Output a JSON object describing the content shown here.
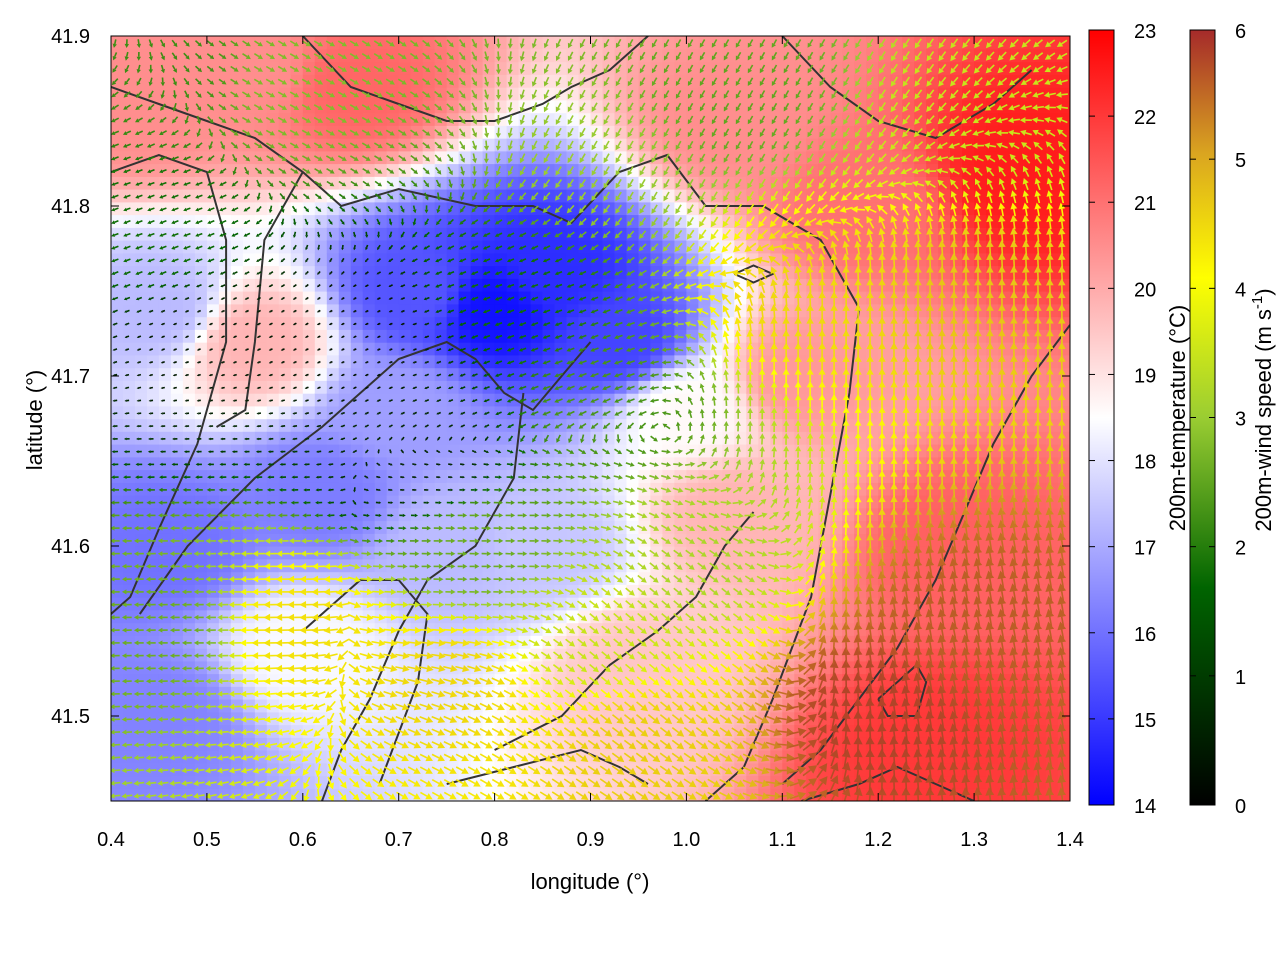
{
  "chart_data": {
    "type": "heatmap",
    "title": "",
    "xlabel": "longitude (°)",
    "ylabel": "latitude (°)",
    "xlim": [
      0.4,
      1.4
    ],
    "ylim": [
      41.45,
      41.9
    ],
    "xticks": [
      "0.4",
      "0.5",
      "0.6",
      "0.7",
      "0.8",
      "0.9",
      "1.0",
      "1.1",
      "1.2",
      "1.3",
      "1.4"
    ],
    "yticks": [
      "41.5",
      "41.6",
      "41.7",
      "41.8",
      "41.9"
    ],
    "temperature_colorbar": {
      "label": "200m-temperature (°C)",
      "range": [
        14,
        23
      ],
      "ticks": [
        "14",
        "15",
        "16",
        "17",
        "18",
        "19",
        "20",
        "21",
        "22",
        "23"
      ],
      "colors": [
        "#0000ff",
        "#ffffff",
        "#ff0000"
      ]
    },
    "wind_colorbar": {
      "label_main": "200m-wind speed (m s",
      "label_sup": "-1",
      "label_end": ")",
      "range": [
        0,
        6
      ],
      "ticks": [
        "0",
        "1",
        "2",
        "3",
        "4",
        "5",
        "6"
      ],
      "colors": [
        "#000000",
        "#006400",
        "#9acd32",
        "#ffff00",
        "#daa520",
        "#a52a2a"
      ]
    },
    "temperature_field_anchors": [
      {
        "lon": 0.8,
        "lat": 41.74,
        "t": 14.3
      },
      {
        "lon": 0.86,
        "lat": 41.76,
        "t": 14.8
      },
      {
        "lon": 0.72,
        "lat": 41.75,
        "t": 15.5
      },
      {
        "lon": 0.93,
        "lat": 41.72,
        "t": 15.2
      },
      {
        "lon": 0.46,
        "lat": 41.6,
        "t": 16.0
      },
      {
        "lon": 0.62,
        "lat": 41.63,
        "t": 16.2
      },
      {
        "lon": 0.45,
        "lat": 41.5,
        "t": 16.3
      },
      {
        "lon": 0.45,
        "lat": 41.74,
        "t": 17.3
      },
      {
        "lon": 0.75,
        "lat": 41.6,
        "t": 17.3
      },
      {
        "lon": 0.85,
        "lat": 41.6,
        "t": 17.5
      },
      {
        "lon": 0.7,
        "lat": 41.68,
        "t": 16.8
      },
      {
        "lon": 0.55,
        "lat": 41.72,
        "t": 19.8
      },
      {
        "lon": 0.43,
        "lat": 41.86,
        "t": 20.5
      },
      {
        "lon": 0.65,
        "lat": 41.87,
        "t": 21.2
      },
      {
        "lon": 0.55,
        "lat": 41.88,
        "t": 20.5
      },
      {
        "lon": 1.18,
        "lat": 41.8,
        "t": 21.0
      },
      {
        "lon": 1.35,
        "lat": 41.82,
        "t": 22.5
      },
      {
        "lon": 1.28,
        "lat": 41.6,
        "t": 21.3
      },
      {
        "lon": 1.25,
        "lat": 41.48,
        "t": 22.0
      },
      {
        "lon": 1.05,
        "lat": 41.62,
        "t": 19.8
      },
      {
        "lon": 0.95,
        "lat": 41.53,
        "t": 19.5
      },
      {
        "lon": 0.6,
        "lat": 41.54,
        "t": 18.4
      },
      {
        "lon": 1.05,
        "lat": 41.85,
        "t": 20.5
      },
      {
        "lon": 1.0,
        "lat": 41.68,
        "t": 18.6
      },
      {
        "lon": 1.12,
        "lat": 41.7,
        "t": 20.3
      }
    ],
    "wind_speed_anchors": [
      {
        "lon": 0.45,
        "lat": 41.78,
        "s": 1.8
      },
      {
        "lon": 0.5,
        "lat": 41.72,
        "s": 0.4
      },
      {
        "lon": 0.65,
        "lat": 41.72,
        "s": 0.3
      },
      {
        "lon": 0.72,
        "lat": 41.65,
        "s": 0.6
      },
      {
        "lon": 0.82,
        "lat": 41.75,
        "s": 1.8
      },
      {
        "lon": 0.78,
        "lat": 41.6,
        "s": 2.6
      },
      {
        "lon": 0.45,
        "lat": 41.55,
        "s": 2.6
      },
      {
        "lon": 0.6,
        "lat": 41.55,
        "s": 4.4
      },
      {
        "lon": 0.75,
        "lat": 41.52,
        "s": 4.5
      },
      {
        "lon": 0.9,
        "lat": 41.55,
        "s": 3.5
      },
      {
        "lon": 1.0,
        "lat": 41.6,
        "s": 3.2
      },
      {
        "lon": 0.95,
        "lat": 41.48,
        "s": 4.6
      },
      {
        "lon": 1.2,
        "lat": 41.5,
        "s": 5.8
      },
      {
        "lon": 1.3,
        "lat": 41.55,
        "s": 5.6
      },
      {
        "lon": 1.12,
        "lat": 41.75,
        "s": 4.5
      },
      {
        "lon": 1.3,
        "lat": 41.75,
        "s": 4.7
      },
      {
        "lon": 1.3,
        "lat": 41.85,
        "s": 3.5
      },
      {
        "lon": 1.05,
        "lat": 41.87,
        "s": 2.5
      },
      {
        "lon": 0.6,
        "lat": 41.87,
        "s": 2.8
      },
      {
        "lon": 0.45,
        "lat": 41.88,
        "s": 2.2
      },
      {
        "lon": 0.9,
        "lat": 41.82,
        "s": 3.0
      },
      {
        "lon": 0.92,
        "lat": 41.68,
        "s": 2.3
      }
    ],
    "wind_direction_anchors": [
      {
        "lon": 0.5,
        "lat": 41.6,
        "dir_deg": 180
      },
      {
        "lon": 0.8,
        "lat": 41.6,
        "dir_deg": 0
      },
      {
        "lon": 0.95,
        "lat": 41.55,
        "dir_deg": 320
      },
      {
        "lon": 1.2,
        "lat": 41.7,
        "dir_deg": 90
      },
      {
        "lon": 1.3,
        "lat": 41.55,
        "dir_deg": 100
      },
      {
        "lon": 1.0,
        "lat": 41.85,
        "dir_deg": 240
      },
      {
        "lon": 0.6,
        "lat": 41.85,
        "dir_deg": 330
      },
      {
        "lon": 0.45,
        "lat": 41.8,
        "dir_deg": 200
      },
      {
        "lon": 0.8,
        "lat": 41.72,
        "dir_deg": 200
      }
    ],
    "contours": [
      [
        [
          0.4,
          41.87
        ],
        [
          0.45,
          41.86
        ],
        [
          0.5,
          41.85
        ],
        [
          0.55,
          41.84
        ],
        [
          0.6,
          41.82
        ],
        [
          0.64,
          41.8
        ],
        [
          0.7,
          41.81
        ],
        [
          0.78,
          41.8
        ],
        [
          0.84,
          41.8
        ],
        [
          0.88,
          41.79
        ],
        [
          0.93,
          41.82
        ],
        [
          0.98,
          41.83
        ],
        [
          1.02,
          41.8
        ],
        [
          1.08,
          41.8
        ],
        [
          1.14,
          41.78
        ],
        [
          1.18,
          41.74
        ],
        [
          1.17,
          41.69
        ],
        [
          1.15,
          41.63
        ],
        [
          1.13,
          41.57
        ],
        [
          1.09,
          41.51
        ],
        [
          1.06,
          41.47
        ],
        [
          1.02,
          41.45
        ]
      ],
      [
        [
          0.4,
          41.82
        ],
        [
          0.45,
          41.83
        ],
        [
          0.5,
          41.82
        ],
        [
          0.52,
          41.78
        ],
        [
          0.52,
          41.72
        ],
        [
          0.49,
          41.66
        ],
        [
          0.45,
          41.61
        ],
        [
          0.42,
          41.57
        ],
        [
          0.4,
          41.56
        ]
      ],
      [
        [
          0.6,
          41.82
        ],
        [
          0.56,
          41.78
        ],
        [
          0.55,
          41.72
        ],
        [
          0.54,
          41.68
        ],
        [
          0.51,
          41.67
        ]
      ],
      [
        [
          0.43,
          41.56
        ],
        [
          0.48,
          41.6
        ],
        [
          0.55,
          41.64
        ],
        [
          0.62,
          41.67
        ],
        [
          0.7,
          41.71
        ],
        [
          0.75,
          41.72
        ],
        [
          0.78,
          41.71
        ],
        [
          0.81,
          41.69
        ],
        [
          0.84,
          41.68
        ],
        [
          0.87,
          41.7
        ],
        [
          0.9,
          41.72
        ]
      ],
      [
        [
          0.83,
          41.69
        ],
        [
          0.82,
          41.64
        ],
        [
          0.78,
          41.6
        ],
        [
          0.73,
          41.58
        ],
        [
          0.7,
          41.55
        ],
        [
          0.67,
          41.51
        ],
        [
          0.64,
          41.48
        ],
        [
          0.62,
          41.45
        ]
      ],
      [
        [
          0.6,
          41.55
        ],
        [
          0.66,
          41.58
        ],
        [
          0.7,
          41.58
        ],
        [
          0.73,
          41.56
        ],
        [
          0.72,
          41.52
        ],
        [
          0.7,
          41.49
        ],
        [
          0.68,
          41.46
        ]
      ],
      [
        [
          0.8,
          41.48
        ],
        [
          0.87,
          41.5
        ],
        [
          0.92,
          41.53
        ],
        [
          0.97,
          41.55
        ],
        [
          1.01,
          41.57
        ],
        [
          1.04,
          41.6
        ],
        [
          1.07,
          41.62
        ]
      ],
      [
        [
          0.75,
          41.46
        ],
        [
          0.82,
          41.47
        ],
        [
          0.89,
          41.48
        ],
        [
          0.93,
          41.47
        ],
        [
          0.96,
          41.46
        ]
      ],
      [
        [
          1.4,
          41.73
        ],
        [
          1.36,
          41.7
        ],
        [
          1.32,
          41.66
        ],
        [
          1.29,
          41.62
        ],
        [
          1.26,
          41.58
        ],
        [
          1.22,
          41.54
        ],
        [
          1.18,
          41.51
        ],
        [
          1.14,
          41.48
        ],
        [
          1.1,
          41.46
        ]
      ],
      [
        [
          0.6,
          41.9
        ],
        [
          0.65,
          41.87
        ],
        [
          0.7,
          41.86
        ],
        [
          0.75,
          41.85
        ],
        [
          0.8,
          41.85
        ],
        [
          0.85,
          41.86
        ],
        [
          0.88,
          41.87
        ],
        [
          0.92,
          41.88
        ],
        [
          0.96,
          41.9
        ]
      ],
      [
        [
          1.1,
          41.9
        ],
        [
          1.15,
          41.87
        ],
        [
          1.2,
          41.85
        ],
        [
          1.26,
          41.84
        ],
        [
          1.32,
          41.86
        ],
        [
          1.36,
          41.88
        ]
      ],
      [
        [
          1.05,
          41.76
        ],
        [
          1.07,
          41.755
        ],
        [
          1.09,
          41.76
        ],
        [
          1.07,
          41.765
        ],
        [
          1.05,
          41.76
        ]
      ],
      [
        [
          1.2,
          41.51
        ],
        [
          1.24,
          41.53
        ],
        [
          1.25,
          41.52
        ],
        [
          1.24,
          41.5
        ],
        [
          1.21,
          41.5
        ],
        [
          1.2,
          41.51
        ]
      ],
      [
        [
          1.12,
          41.45
        ],
        [
          1.18,
          41.46
        ],
        [
          1.22,
          41.47
        ],
        [
          1.26,
          41.46
        ],
        [
          1.3,
          41.45
        ]
      ]
    ]
  }
}
